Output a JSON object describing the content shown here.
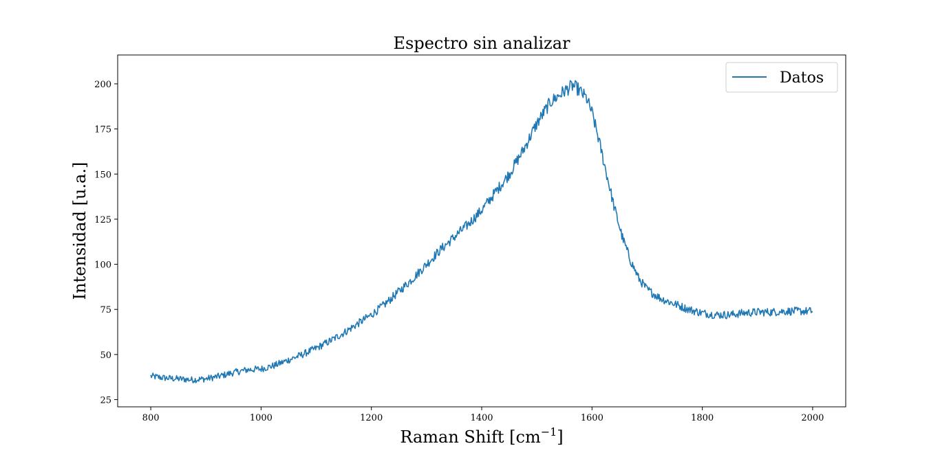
{
  "chart_data": {
    "type": "line",
    "title": "Espectro sin analizar",
    "xlabel": "Raman Shift [cm",
    "xlabel_sup": "−1",
    "xlabel_end": "]",
    "ylabel": "Intensidad [u.a.]",
    "xlim": [
      740,
      2060
    ],
    "ylim": [
      21,
      216
    ],
    "xticks": [
      800,
      1000,
      1200,
      1400,
      1600,
      1800,
      2000
    ],
    "yticks": [
      25,
      50,
      75,
      100,
      125,
      150,
      175,
      200
    ],
    "grid": false,
    "legend_position": "upper right",
    "series": [
      {
        "name": "Datos",
        "color": "#1f77b4",
        "x": [
          800,
          825,
          850,
          875,
          900,
          925,
          950,
          975,
          1000,
          1025,
          1050,
          1075,
          1100,
          1125,
          1150,
          1175,
          1200,
          1225,
          1250,
          1275,
          1300,
          1325,
          1350,
          1375,
          1400,
          1425,
          1450,
          1475,
          1500,
          1525,
          1550,
          1565,
          1575,
          1590,
          1600,
          1610,
          1625,
          1640,
          1655,
          1670,
          1685,
          1700,
          1725,
          1750,
          1775,
          1800,
          1825,
          1850,
          1875,
          1900,
          1925,
          1950,
          1975,
          2000
        ],
        "y": [
          38,
          37,
          36.5,
          36,
          36.5,
          38,
          40,
          41.5,
          42,
          44,
          47,
          50,
          53.5,
          57.5,
          62,
          67,
          72,
          78,
          85,
          92,
          100,
          108,
          115,
          122,
          130,
          140,
          150,
          163,
          178,
          190,
          196,
          199,
          197,
          192,
          184,
          172,
          152,
          132,
          115,
          102,
          92,
          86,
          81,
          78,
          75,
          73,
          72,
          72,
          73,
          73.5,
          73.5,
          74,
          74,
          74
        ]
      }
    ]
  }
}
